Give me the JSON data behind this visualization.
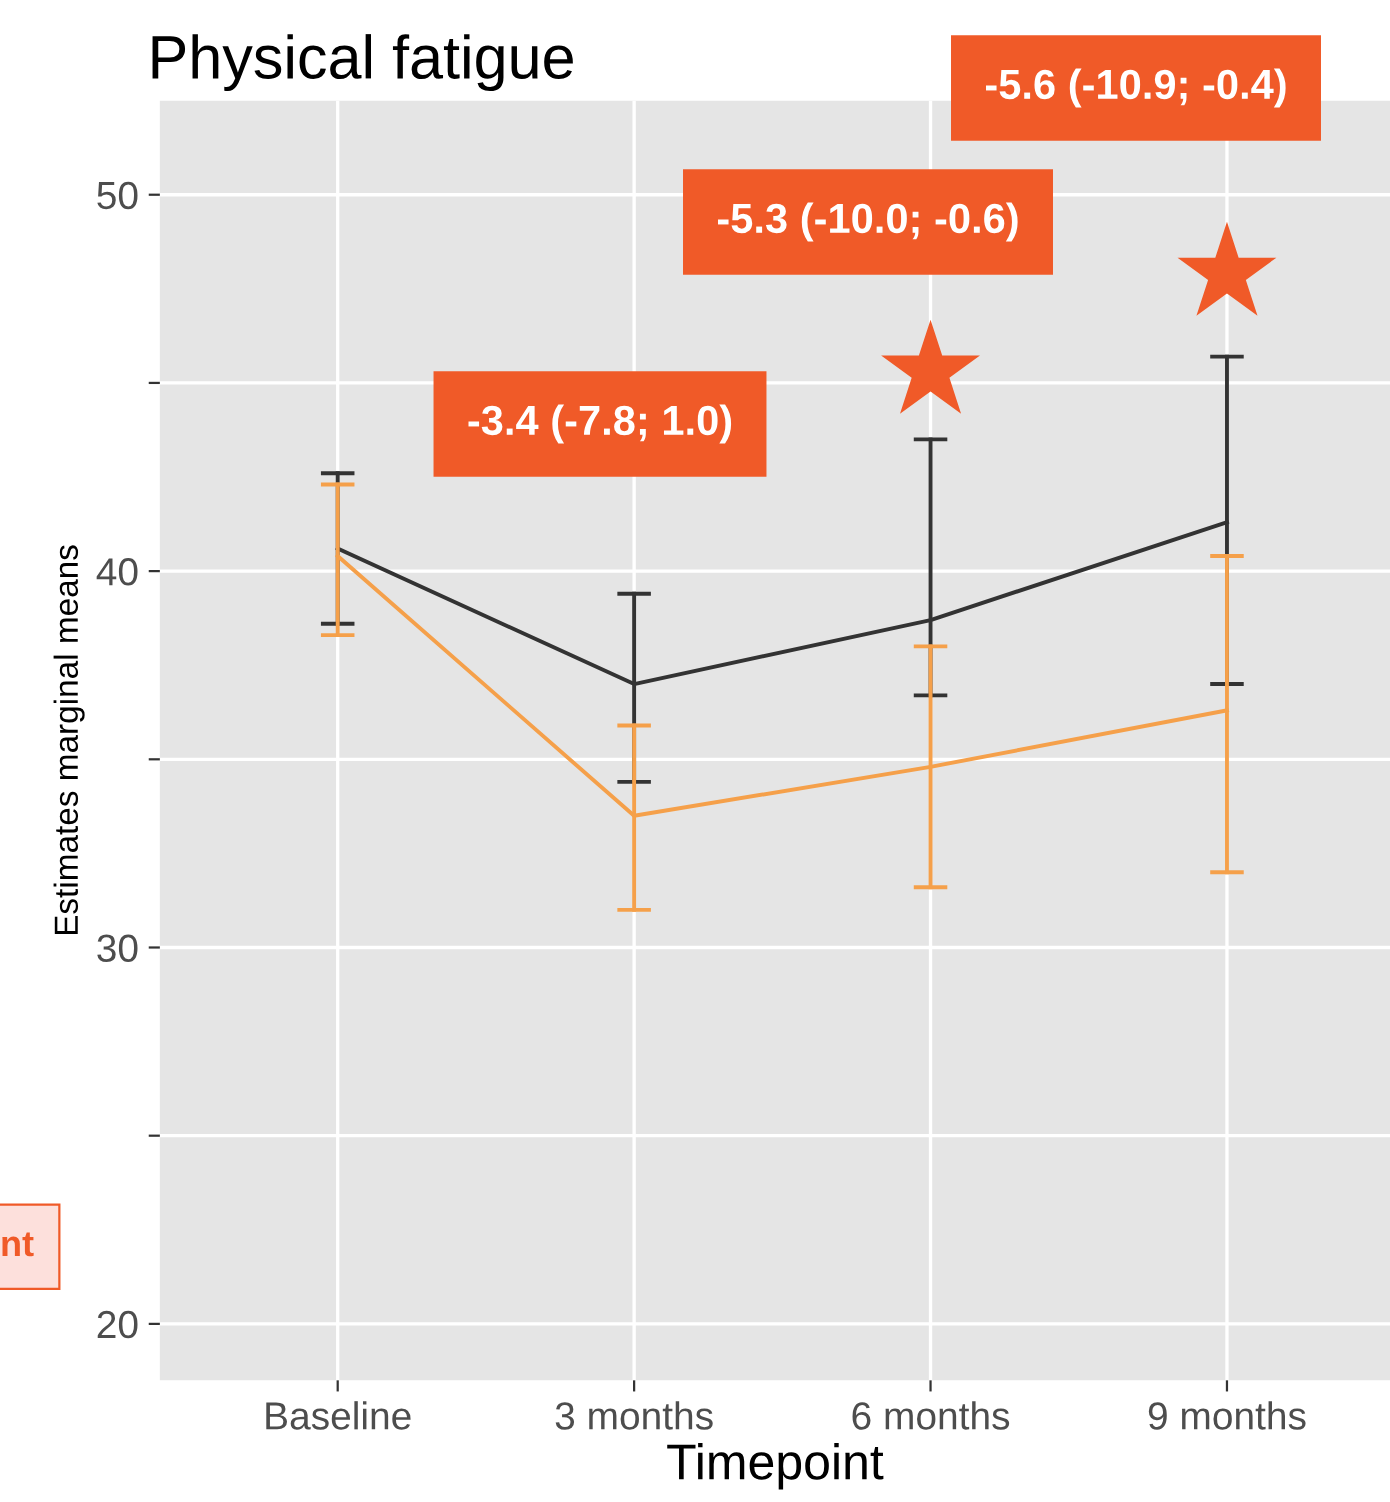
{
  "chart_data": {
    "type": "line",
    "title": "Physical fatigue",
    "xlabel": "Timepoint",
    "ylabel": "Estimates marginal means",
    "categories": [
      "Baseline",
      "3 months",
      "6 months",
      "9 months"
    ],
    "series": [
      {
        "color": "#333333",
        "values": [
          40.6,
          37.0,
          38.7,
          41.3
        ],
        "errors": [
          [
            38.6,
            42.6
          ],
          [
            34.4,
            39.4
          ],
          [
            36.7,
            43.5
          ],
          [
            37.0,
            45.7
          ]
        ]
      },
      {
        "color": "#f5a04a",
        "values": [
          40.4,
          33.5,
          34.8,
          36.3
        ],
        "errors": [
          [
            38.3,
            42.3
          ],
          [
            31.0,
            35.9
          ],
          [
            31.6,
            38.0
          ],
          [
            32.0,
            40.4
          ]
        ]
      },
      {
        "type": "scatter",
        "marker": "star",
        "color": "#f05a28",
        "values": [
          null,
          null,
          45.3,
          47.9
        ]
      }
    ],
    "ylim": [
      18.5,
      52.5
    ],
    "yticks": [
      20,
      {
        "value": 25,
        "label": null
      },
      30,
      {
        "value": 35,
        "label": null
      },
      40,
      {
        "value": 45,
        "label": null
      },
      50
    ],
    "grid": true,
    "marker": "none",
    "annotations": [
      "-3.4 (-7.8; 1.0)",
      "-5.3 (-10.0; -0.6)",
      "-5.6 (-10.9; -0.4)",
      "nt"
    ]
  }
}
